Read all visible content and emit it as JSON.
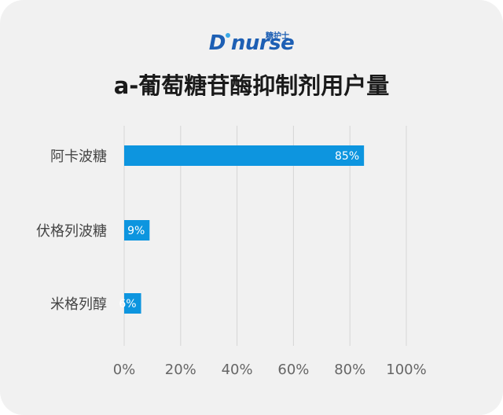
{
  "brand": {
    "logo_text": "D",
    "logo_text_rest": "nurse",
    "logo_chinese": "糖护士",
    "colors": {
      "logo": "#1d5fb4",
      "bar": "#0d95df",
      "card": "#f1f1f1"
    }
  },
  "chart_data": {
    "type": "bar",
    "orientation": "horizontal",
    "title": "a-葡萄糖苷酶抑制剂用户量",
    "categories": [
      "阿卡波糖",
      "伏格列波糖",
      "米格列醇"
    ],
    "values": [
      85,
      9,
      6
    ],
    "data_labels": [
      "85%",
      "9%",
      "6%"
    ],
    "xlim": [
      0,
      100
    ],
    "x_ticks": [
      0,
      20,
      40,
      60,
      80,
      100
    ],
    "x_tick_labels": [
      "0%",
      "20%",
      "40%",
      "60%",
      "80%",
      "100%"
    ],
    "grid": true,
    "legend": "none"
  }
}
